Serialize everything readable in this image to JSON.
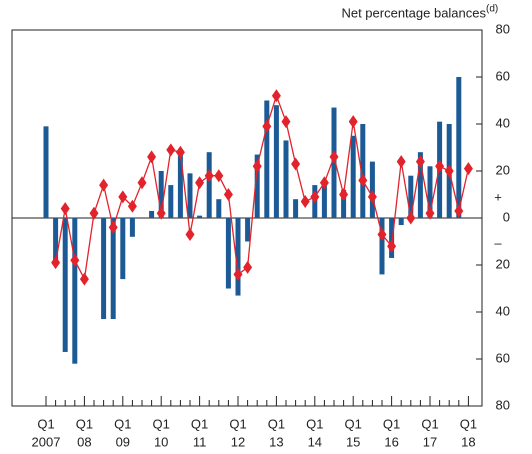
{
  "chart_data": {
    "type": "bar_line",
    "y_label": "Net percentage balances",
    "y_label_note": "(d)",
    "signs": {
      "plus": "+",
      "minus": "–"
    },
    "categories": [
      "Q1",
      null,
      null,
      null,
      "Q1",
      null,
      null,
      null,
      "Q1",
      null,
      null,
      null,
      "Q1",
      null,
      null,
      null,
      "Q1",
      null,
      null,
      null,
      "Q1",
      null,
      null,
      null,
      "Q1",
      null,
      null,
      null,
      "Q1",
      null,
      null,
      null,
      "Q1",
      null,
      null,
      null,
      "Q1",
      null,
      null,
      null,
      "Q1",
      null,
      null,
      null,
      "Q1"
    ],
    "years": [
      "2007",
      null,
      null,
      null,
      "08",
      null,
      null,
      null,
      "09",
      null,
      null,
      null,
      "10",
      null,
      null,
      null,
      "11",
      null,
      null,
      null,
      "12",
      null,
      null,
      null,
      "13",
      null,
      null,
      null,
      "14",
      null,
      null,
      null,
      "15",
      null,
      null,
      null,
      "16",
      null,
      null,
      null,
      "17",
      null,
      null,
      null,
      "18"
    ],
    "series": [
      {
        "type": "bar",
        "color": "#1b5a94",
        "values": [
          39,
          -19,
          -57,
          -62,
          null,
          null,
          -43,
          -43,
          -26,
          -8,
          null,
          3,
          20,
          14,
          27,
          19,
          1,
          28,
          8,
          -30,
          -33,
          -10,
          27,
          50,
          48,
          33,
          8,
          null,
          14,
          15,
          47,
          12,
          35,
          40,
          24,
          -24,
          -17,
          -3,
          18,
          28,
          22,
          41,
          40,
          60,
          null
        ]
      },
      {
        "type": "line",
        "color": "#e3232c",
        "values": [
          null,
          -19,
          4,
          -18,
          -26,
          2,
          14,
          -4,
          9,
          5,
          15,
          26,
          2,
          29,
          28,
          -7,
          15,
          18,
          18,
          10,
          -24,
          -21,
          22,
          39,
          52,
          41,
          23,
          7,
          9,
          15,
          26,
          10,
          41,
          16,
          9,
          -7,
          -12,
          24,
          0,
          24,
          2,
          22,
          20,
          3,
          21
        ]
      }
    ],
    "ylim": [
      -80,
      80
    ],
    "yticks": [
      {
        "value": -80,
        "label": "80"
      },
      {
        "value": -60,
        "label": "60"
      },
      {
        "value": -40,
        "label": "40"
      },
      {
        "value": -20,
        "label": "20"
      },
      0,
      20,
      40,
      60,
      80
    ]
  }
}
